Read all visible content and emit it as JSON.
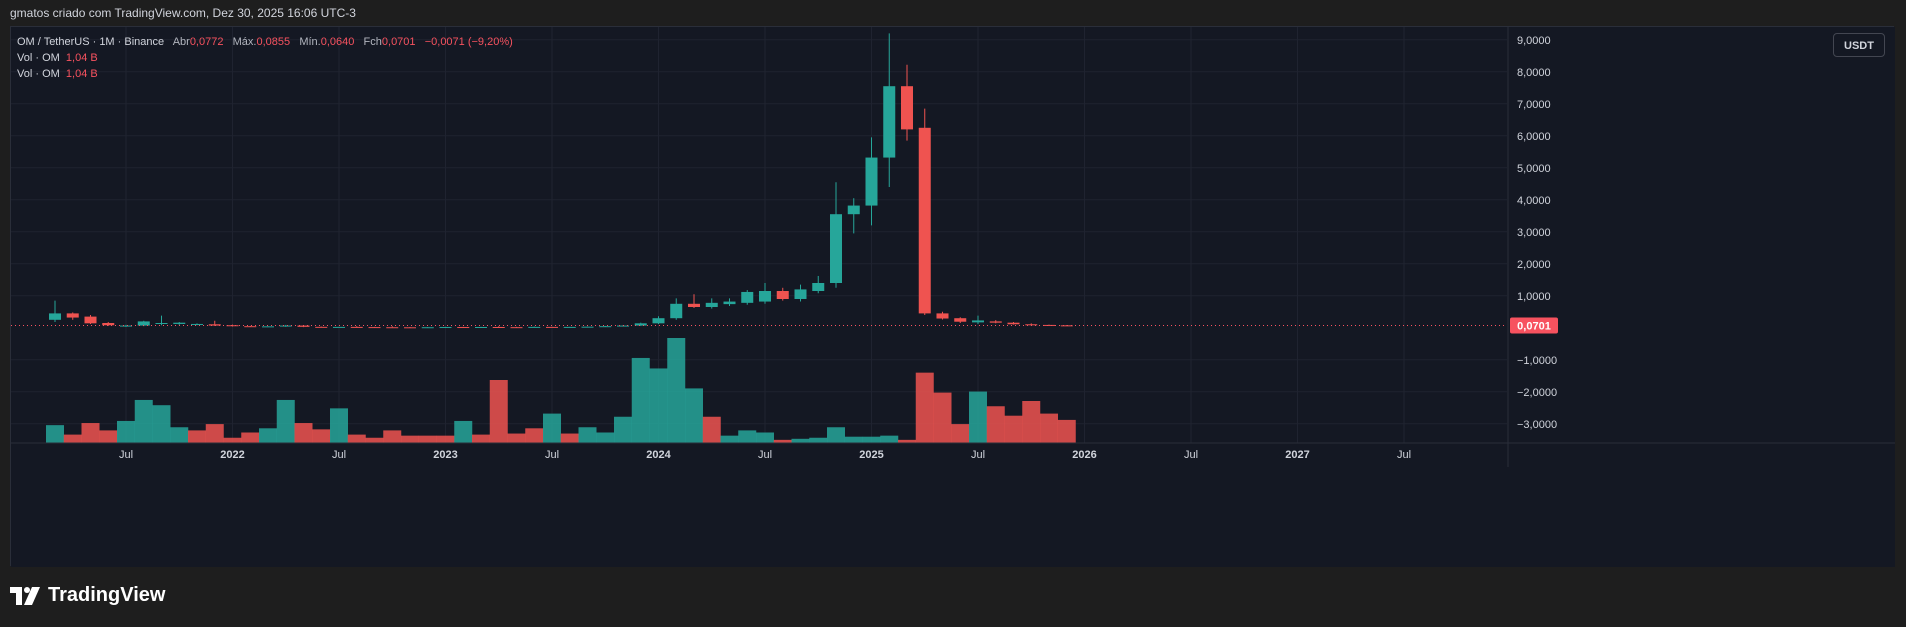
{
  "caption": "gmatos criado com TradingView.com, Dez 30, 2025 16:06 UTC-3",
  "legend": {
    "symbol": "OM / TetherUS · 1M · Binance",
    "open_label": "Abr",
    "open": "0,0772",
    "high_label": "Máx.",
    "high": "0,0855",
    "low_label": "Mín.",
    "low": "0,0640",
    "close_label": "Fch",
    "close": "0,0701",
    "change": "−0,0071 (−9,20%)",
    "vol1_label": "Vol · OM",
    "vol1_value": "1,04 B",
    "vol2_label": "Vol · OM",
    "vol2_value": "1,04 B"
  },
  "unit_label": "USDT",
  "brand": "TradingView",
  "colors": {
    "up": "#26a69a",
    "down": "#ef5350",
    "background": "#141823",
    "grid": "#1f2330",
    "axis_text": "#d1d4dc",
    "price_tag": "#f7525f"
  },
  "chart_data": {
    "type": "candlestick",
    "interval": "1M",
    "price_axis": {
      "ticks": [
        9,
        8,
        7,
        6,
        5,
        4,
        3,
        2,
        1,
        -1,
        -2,
        -3
      ],
      "tick_labels": [
        "9,0000",
        "8,0000",
        "7,0000",
        "6,0000",
        "5,0000",
        "4,0000",
        "3,0000",
        "2,0000",
        "1,0000",
        "−1,0000",
        "−2,0000",
        "−3,0000"
      ],
      "range": [
        -3.6,
        9.4
      ],
      "last_price": 0.0701,
      "last_price_label": "0,0701"
    },
    "time_axis": {
      "labels": [
        {
          "text": "Jul",
          "index": 4
        },
        {
          "text": "2022",
          "index": 10
        },
        {
          "text": "Jul",
          "index": 16
        },
        {
          "text": "2023",
          "index": 22
        },
        {
          "text": "Jul",
          "index": 28
        },
        {
          "text": "2024",
          "index": 34
        },
        {
          "text": "Jul",
          "index": 40
        },
        {
          "text": "2025",
          "index": 46
        },
        {
          "text": "Jul",
          "index": 52
        },
        {
          "text": "2026",
          "index": 58
        },
        {
          "text": "Jul",
          "index": 64
        },
        {
          "text": "2027",
          "index": 70
        },
        {
          "text": "Jul",
          "index": 76
        }
      ]
    },
    "candles": [
      {
        "o": 0.25,
        "h": 0.85,
        "l": 0.18,
        "c": 0.45
      },
      {
        "o": 0.45,
        "h": 0.48,
        "l": 0.25,
        "c": 0.32
      },
      {
        "o": 0.35,
        "h": 0.4,
        "l": 0.12,
        "c": 0.14
      },
      {
        "o": 0.15,
        "h": 0.18,
        "l": 0.06,
        "c": 0.08
      },
      {
        "o": 0.05,
        "h": 0.09,
        "l": 0.03,
        "c": 0.07
      },
      {
        "o": 0.07,
        "h": 0.22,
        "l": 0.05,
        "c": 0.2
      },
      {
        "o": 0.12,
        "h": 0.38,
        "l": 0.08,
        "c": 0.15
      },
      {
        "o": 0.12,
        "h": 0.18,
        "l": 0.09,
        "c": 0.16
      },
      {
        "o": 0.11,
        "h": 0.14,
        "l": 0.08,
        "c": 0.12
      },
      {
        "o": 0.11,
        "h": 0.22,
        "l": 0.06,
        "c": 0.07
      },
      {
        "o": 0.08,
        "h": 0.1,
        "l": 0.04,
        "c": 0.05
      },
      {
        "o": 0.05,
        "h": 0.06,
        "l": 0.03,
        "c": 0.04
      },
      {
        "o": 0.04,
        "h": 0.05,
        "l": 0.03,
        "c": 0.045
      },
      {
        "o": 0.04,
        "h": 0.09,
        "l": 0.03,
        "c": 0.07
      },
      {
        "o": 0.07,
        "h": 0.08,
        "l": 0.02,
        "c": 0.03
      },
      {
        "o": 0.03,
        "h": 0.04,
        "l": 0.02,
        "c": 0.025
      },
      {
        "o": 0.025,
        "h": 0.03,
        "l": 0.02,
        "c": 0.028
      },
      {
        "o": 0.028,
        "h": 0.05,
        "l": 0.02,
        "c": 0.022
      },
      {
        "o": 0.022,
        "h": 0.03,
        "l": 0.015,
        "c": 0.018
      },
      {
        "o": 0.018,
        "h": 0.05,
        "l": 0.015,
        "c": 0.016
      },
      {
        "o": 0.016,
        "h": 0.02,
        "l": 0.01,
        "c": 0.012
      },
      {
        "o": 0.012,
        "h": 0.02,
        "l": 0.01,
        "c": 0.018
      },
      {
        "o": 0.018,
        "h": 0.03,
        "l": 0.01,
        "c": 0.024
      },
      {
        "o": 0.024,
        "h": 0.03,
        "l": 0.015,
        "c": 0.02
      },
      {
        "o": 0.02,
        "h": 0.03,
        "l": 0.015,
        "c": 0.025
      },
      {
        "o": 0.025,
        "h": 0.05,
        "l": 0.02,
        "c": 0.02
      },
      {
        "o": 0.02,
        "h": 0.03,
        "l": 0.015,
        "c": 0.018
      },
      {
        "o": 0.018,
        "h": 0.04,
        "l": 0.015,
        "c": 0.028
      },
      {
        "o": 0.028,
        "h": 0.03,
        "l": 0.018,
        "c": 0.022
      },
      {
        "o": 0.022,
        "h": 0.03,
        "l": 0.018,
        "c": 0.028
      },
      {
        "o": 0.028,
        "h": 0.04,
        "l": 0.02,
        "c": 0.035
      },
      {
        "o": 0.035,
        "h": 0.06,
        "l": 0.03,
        "c": 0.05
      },
      {
        "o": 0.05,
        "h": 0.08,
        "l": 0.04,
        "c": 0.07
      },
      {
        "o": 0.07,
        "h": 0.16,
        "l": 0.06,
        "c": 0.14
      },
      {
        "o": 0.14,
        "h": 0.36,
        "l": 0.12,
        "c": 0.3
      },
      {
        "o": 0.3,
        "h": 0.92,
        "l": 0.25,
        "c": 0.75
      },
      {
        "o": 0.75,
        "h": 1.05,
        "l": 0.62,
        "c": 0.65
      },
      {
        "o": 0.65,
        "h": 0.92,
        "l": 0.6,
        "c": 0.78
      },
      {
        "o": 0.74,
        "h": 0.92,
        "l": 0.68,
        "c": 0.82
      },
      {
        "o": 0.78,
        "h": 1.18,
        "l": 0.72,
        "c": 1.12
      },
      {
        "o": 0.82,
        "h": 1.4,
        "l": 0.75,
        "c": 1.15
      },
      {
        "o": 1.15,
        "h": 1.25,
        "l": 0.85,
        "c": 0.9
      },
      {
        "o": 0.9,
        "h": 1.35,
        "l": 0.82,
        "c": 1.2
      },
      {
        "o": 1.15,
        "h": 1.62,
        "l": 1.08,
        "c": 1.4
      },
      {
        "o": 1.4,
        "h": 4.55,
        "l": 1.25,
        "c": 3.55
      },
      {
        "o": 3.55,
        "h": 4.05,
        "l": 2.95,
        "c": 3.82
      },
      {
        "o": 3.82,
        "h": 5.95,
        "l": 3.2,
        "c": 5.32
      },
      {
        "o": 5.32,
        "h": 9.2,
        "l": 4.4,
        "c": 7.55
      },
      {
        "o": 7.55,
        "h": 8.22,
        "l": 5.85,
        "c": 6.2
      },
      {
        "o": 6.25,
        "h": 6.85,
        "l": 0.4,
        "c": 0.45
      },
      {
        "o": 0.45,
        "h": 0.5,
        "l": 0.26,
        "c": 0.29
      },
      {
        "o": 0.3,
        "h": 0.33,
        "l": 0.15,
        "c": 0.19
      },
      {
        "o": 0.17,
        "h": 0.38,
        "l": 0.12,
        "c": 0.23
      },
      {
        "o": 0.2,
        "h": 0.24,
        "l": 0.14,
        "c": 0.16
      },
      {
        "o": 0.16,
        "h": 0.18,
        "l": 0.1,
        "c": 0.11
      },
      {
        "o": 0.11,
        "h": 0.14,
        "l": 0.07,
        "c": 0.09
      },
      {
        "o": 0.09,
        "h": 0.1,
        "l": 0.06,
        "c": 0.075
      },
      {
        "o": 0.0772,
        "h": 0.0855,
        "l": 0.064,
        "c": 0.0701
      }
    ],
    "volume": {
      "note": "relative volume bar heights (0-1)",
      "values": [
        0.17,
        0.08,
        0.19,
        0.12,
        0.21,
        0.41,
        0.36,
        0.15,
        0.12,
        0.18,
        0.05,
        0.1,
        0.14,
        0.41,
        0.19,
        0.13,
        0.33,
        0.08,
        0.05,
        0.12,
        0.07,
        0.07,
        0.07,
        0.21,
        0.08,
        0.6,
        0.09,
        0.14,
        0.28,
        0.09,
        0.15,
        0.1,
        0.25,
        0.81,
        0.71,
        1.0,
        0.52,
        0.25,
        0.07,
        0.12,
        0.1,
        0.03,
        0.04,
        0.05,
        0.15,
        0.06,
        0.06,
        0.07,
        0.03,
        0.67,
        0.48,
        0.18,
        0.49,
        0.35,
        0.26,
        0.4,
        0.28,
        0.22
      ],
      "up": [
        true,
        false,
        false,
        false,
        true,
        true,
        true,
        true,
        false,
        false,
        false,
        false,
        true,
        true,
        false,
        false,
        true,
        false,
        false,
        false,
        false,
        false,
        false,
        true,
        false,
        false,
        false,
        false,
        true,
        false,
        true,
        true,
        true,
        true,
        true,
        true,
        true,
        false,
        true,
        true,
        true,
        false,
        true,
        true,
        true,
        true,
        true,
        true,
        false,
        false,
        false,
        false,
        true,
        false,
        false,
        false,
        false,
        false
      ]
    }
  }
}
